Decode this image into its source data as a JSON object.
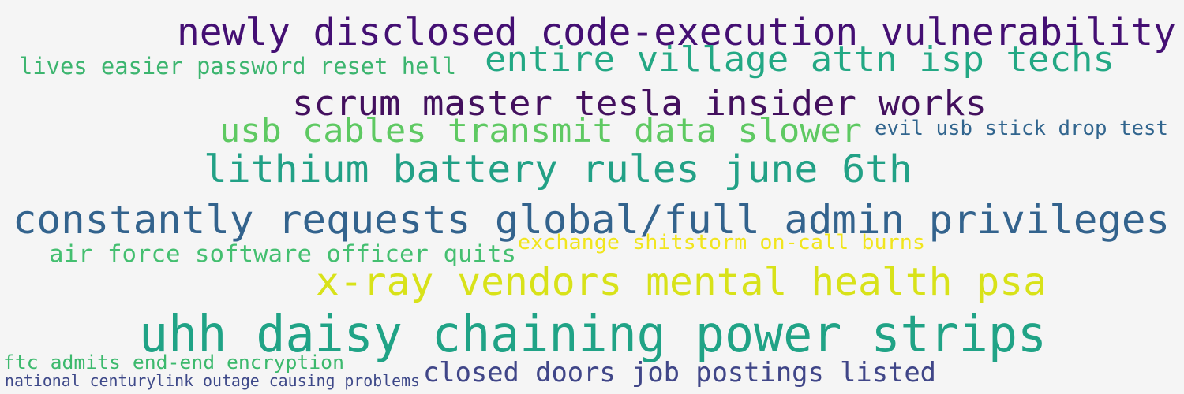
{
  "phrases": [
    {
      "text": "newly disclosed code-execution vulnerability",
      "color": "#440f73"
    },
    {
      "text": "lives easier password reset hell",
      "color": "#3cb56f"
    },
    {
      "text": "entire village attn isp techs",
      "color": "#23a884"
    },
    {
      "text": "scrum master tesla insider works",
      "color": "#43105e"
    },
    {
      "text": "usb cables transmit data slower",
      "color": "#5ec962"
    },
    {
      "text": "evil usb stick drop test",
      "color": "#31658e"
    },
    {
      "text": "lithium battery rules june 6th",
      "color": "#22a186"
    },
    {
      "text": "constantly requests global/full admin privileges",
      "color": "#33638d"
    },
    {
      "text": "air force software officer quits",
      "color": "#44bf70"
    },
    {
      "text": "exchange shitstorm on-call burns",
      "color": "#f1e51d"
    },
    {
      "text": "x-ray vendors mental health psa",
      "color": "#d8e219"
    },
    {
      "text": "uhh daisy chaining power strips",
      "color": "#20a386"
    },
    {
      "text": "ftc admits end-end encryption",
      "color": "#3cb96d"
    },
    {
      "text": "national centurylink outage causing problems",
      "color": "#3e4989"
    },
    {
      "text": "closed doors job postings listed",
      "color": "#404688"
    }
  ]
}
